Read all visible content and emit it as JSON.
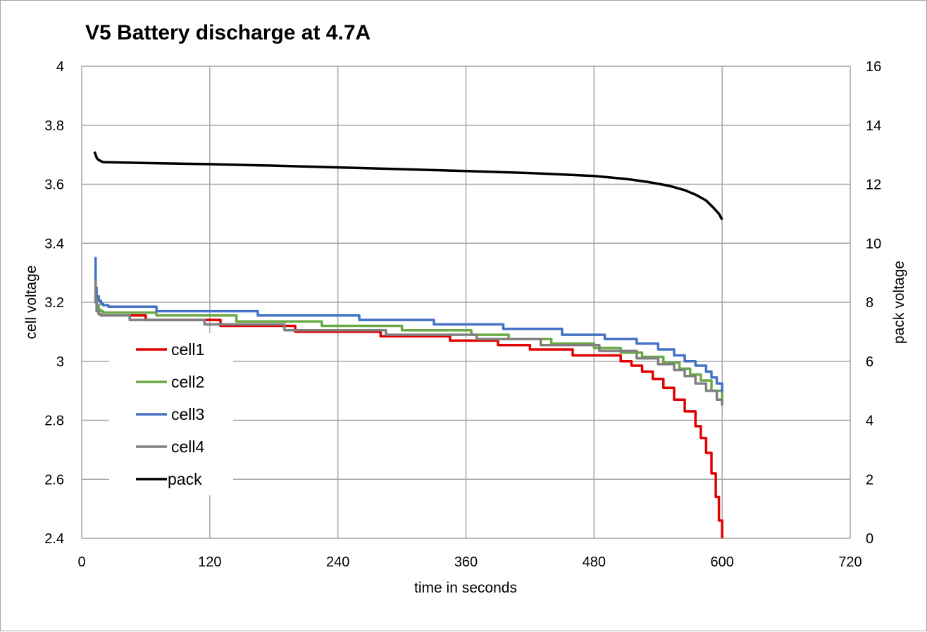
{
  "chart_data": {
    "type": "line",
    "title": "V5 Battery discharge at 4.7A",
    "xlabel": "time in seconds",
    "ylabel": "cell voltage",
    "y2label": "pack voltage",
    "xlim": [
      0,
      720
    ],
    "ylim": [
      2.4,
      4.0
    ],
    "y2lim": [
      0,
      16
    ],
    "x_ticks": [
      "0",
      "120",
      "240",
      "360",
      "480",
      "600",
      "720"
    ],
    "x_tick_values": [
      0,
      120,
      240,
      360,
      480,
      600,
      720
    ],
    "y_ticks": [
      "2.4",
      "2.6",
      "2.8",
      "3",
      "3.2",
      "3.4",
      "3.6",
      "3.8",
      "4"
    ],
    "y_tick_values": [
      2.4,
      2.6,
      2.8,
      3.0,
      3.2,
      3.4,
      3.6,
      3.8,
      4.0
    ],
    "y2_ticks": [
      "0",
      "2",
      "4",
      "6",
      "8",
      "10",
      "12",
      "14",
      "16"
    ],
    "y2_tick_values": [
      0,
      2,
      4,
      6,
      8,
      10,
      12,
      14,
      16
    ],
    "grid": true,
    "legend_position": "left-middle",
    "series": [
      {
        "name": "cell1",
        "color": "#e00000",
        "axis": "left",
        "step": true,
        "x": [
          12,
          13,
          14,
          16,
          18,
          20,
          60,
          130,
          200,
          280,
          345,
          390,
          420,
          460,
          505,
          515,
          525,
          535,
          545,
          555,
          565,
          575,
          580,
          585,
          590,
          594,
          597,
          600
        ],
        "y": [
          3.23,
          3.2,
          3.17,
          3.16,
          3.155,
          3.155,
          3.14,
          3.12,
          3.1,
          3.085,
          3.07,
          3.055,
          3.04,
          3.02,
          3.0,
          2.985,
          2.965,
          2.94,
          2.91,
          2.87,
          2.83,
          2.78,
          2.74,
          2.69,
          2.62,
          2.54,
          2.46,
          2.4
        ]
      },
      {
        "name": "cell2",
        "color": "#6aaa46",
        "axis": "left",
        "step": true,
        "x": [
          12,
          13,
          14,
          16,
          18,
          20,
          70,
          145,
          225,
          300,
          365,
          400,
          440,
          480,
          505,
          525,
          545,
          560,
          570,
          580,
          590,
          600
        ],
        "y": [
          3.3,
          3.22,
          3.19,
          3.175,
          3.17,
          3.165,
          3.155,
          3.135,
          3.12,
          3.105,
          3.09,
          3.075,
          3.06,
          3.045,
          3.03,
          3.015,
          2.995,
          2.975,
          2.955,
          2.935,
          2.9,
          2.855
        ]
      },
      {
        "name": "cell3",
        "color": "#4472c4",
        "axis": "left",
        "step": true,
        "x": [
          12,
          13,
          14,
          16,
          18,
          20,
          25,
          70,
          165,
          260,
          330,
          395,
          450,
          490,
          520,
          540,
          555,
          565,
          575,
          585,
          590,
          595,
          600
        ],
        "y": [
          3.35,
          3.25,
          3.22,
          3.205,
          3.195,
          3.19,
          3.185,
          3.17,
          3.155,
          3.14,
          3.125,
          3.11,
          3.09,
          3.075,
          3.06,
          3.04,
          3.02,
          3.0,
          2.985,
          2.965,
          2.945,
          2.925,
          2.895
        ]
      },
      {
        "name": "cell4",
        "color": "#808080",
        "axis": "left",
        "step": true,
        "x": [
          12,
          13,
          14,
          16,
          18,
          20,
          45,
          115,
          190,
          285,
          370,
          430,
          485,
          520,
          540,
          555,
          565,
          575,
          585,
          595,
          600
        ],
        "y": [
          3.27,
          3.2,
          3.17,
          3.16,
          3.155,
          3.155,
          3.14,
          3.125,
          3.105,
          3.09,
          3.075,
          3.055,
          3.035,
          3.01,
          2.99,
          2.97,
          2.95,
          2.925,
          2.9,
          2.87,
          2.85
        ]
      },
      {
        "name": "pack",
        "color": "#000000",
        "axis": "right",
        "step": false,
        "x": [
          12,
          13,
          14,
          15,
          17,
          20,
          60,
          120,
          180,
          240,
          300,
          360,
          420,
          480,
          510,
          530,
          550,
          565,
          575,
          585,
          592,
          597,
          600
        ],
        "y": [
          13.1,
          13.0,
          12.9,
          12.85,
          12.8,
          12.75,
          12.72,
          12.68,
          12.63,
          12.57,
          12.51,
          12.45,
          12.38,
          12.28,
          12.18,
          12.08,
          11.95,
          11.8,
          11.65,
          11.45,
          11.2,
          11.0,
          10.8
        ]
      }
    ]
  }
}
